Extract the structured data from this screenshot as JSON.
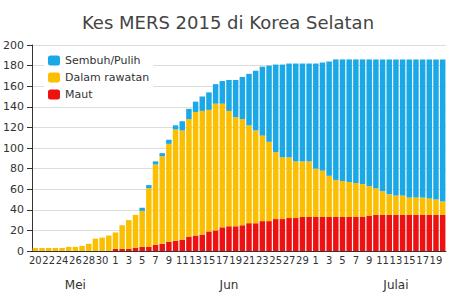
{
  "chart_data": {
    "type": "bar",
    "title": "Kes MERS 2015 di Korea Selatan",
    "stacked": true,
    "grid": true,
    "legend": "upper left",
    "categories": [
      "20",
      null,
      "22",
      null,
      "24",
      null,
      "26",
      null,
      "28",
      null,
      "30",
      null,
      "1",
      null,
      "3",
      null,
      "5",
      null,
      "7",
      null,
      "9",
      null,
      "11",
      null,
      "13",
      null,
      "15",
      null,
      "17",
      null,
      "19",
      null,
      "21",
      null,
      "23",
      null,
      "25",
      null,
      "27",
      null,
      "29",
      null,
      "1",
      null,
      "3",
      null,
      "5",
      null,
      "7",
      null,
      "9",
      null,
      "11",
      null,
      "13",
      null,
      "15",
      null,
      "17",
      null,
      "19",
      null
    ],
    "month_labels": [
      null,
      null,
      null,
      null,
      null,
      null,
      "Mei",
      null,
      null,
      null,
      null,
      null,
      null,
      null,
      null,
      null,
      null,
      null,
      null,
      null,
      null,
      null,
      null,
      null,
      null,
      null,
      null,
      null,
      null,
      "Jun",
      null,
      null,
      null,
      null,
      null,
      null,
      null,
      null,
      null,
      null,
      null,
      null,
      null,
      null,
      null,
      null,
      null,
      null,
      null,
      null,
      null,
      null,
      null,
      null,
      "Julai",
      null,
      null,
      null,
      null,
      null,
      null,
      null
    ],
    "series": [
      {
        "name": "Sembuh/Pulih",
        "color": "#1aa9e6",
        "values": [
          0,
          0,
          0,
          0,
          0,
          0,
          0,
          0,
          0,
          0,
          0,
          0,
          0,
          0,
          0,
          0,
          3,
          3,
          3,
          3,
          4,
          4,
          9,
          10,
          10,
          14,
          17,
          19,
          22,
          30,
          36,
          41,
          50,
          58,
          67,
          74,
          85,
          90,
          91,
          95,
          95,
          95,
          102,
          105,
          111,
          117,
          118,
          119,
          120,
          121,
          123,
          125,
          128,
          131,
          132,
          132,
          134,
          134,
          134,
          135,
          136,
          138
        ]
      },
      {
        "name": "Dalam rawatan",
        "color": "#fbbf00",
        "values": [
          3,
          3,
          3,
          3,
          3,
          4,
          4,
          5,
          7,
          12,
          13,
          15,
          16,
          23,
          28,
          32,
          35,
          57,
          78,
          85,
          95,
          108,
          106,
          114,
          120,
          120,
          118,
          123,
          120,
          112,
          106,
          103,
          95,
          90,
          83,
          77,
          65,
          60,
          59,
          55,
          54,
          54,
          47,
          45,
          40,
          36,
          35,
          34,
          33,
          32,
          29,
          26,
          23,
          20,
          19,
          19,
          17,
          17,
          17,
          16,
          15,
          13
        ]
      },
      {
        "name": "Maut",
        "color": "#ee1111",
        "values": [
          0,
          0,
          0,
          0,
          0,
          0,
          0,
          0,
          0,
          0,
          0,
          0,
          2,
          2,
          2,
          3,
          4,
          4,
          6,
          7,
          9,
          10,
          11,
          14,
          15,
          16,
          19,
          20,
          23,
          24,
          24,
          25,
          27,
          27,
          29,
          29,
          31,
          31,
          32,
          32,
          33,
          33,
          33,
          33,
          33,
          33,
          33,
          33,
          33,
          33,
          34,
          35,
          35,
          35,
          35,
          35,
          35,
          35,
          35,
          35,
          35,
          35
        ]
      }
    ],
    "ylim": [
      0,
      200
    ],
    "yticks": [
      0,
      20,
      40,
      60,
      80,
      100,
      120,
      140,
      160,
      180,
      200
    ]
  }
}
